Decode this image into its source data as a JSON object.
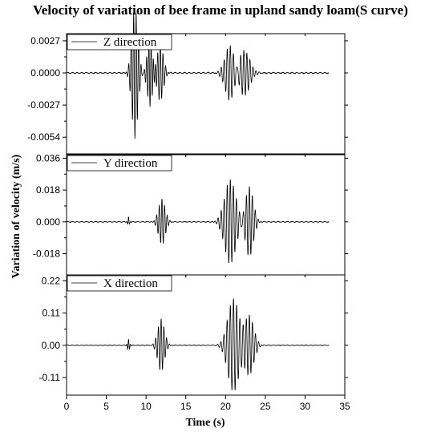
{
  "chart_data": {
    "type": "line",
    "title": "Velocity of variation of bee frame in upland sandy loam(S curve)",
    "xlabel": "Time (s)",
    "ylabel": "Variation of velocity (m/s)",
    "xlim": [
      0,
      35
    ],
    "xticks": [
      "0",
      "5",
      "10",
      "15",
      "20",
      "25",
      "30",
      "35"
    ],
    "grid": false,
    "panels": [
      {
        "name": "Z direction",
        "ylim": [
          -0.0068,
          0.0033
        ],
        "yticks": [
          0.0027,
          0.0,
          -0.0027,
          -0.0054
        ],
        "ytick_labels": [
          "0.0027",
          "0.0000",
          "-0.0027",
          "-0.0054"
        ],
        "events": [
          {
            "t": 8.6,
            "amp": -0.0055,
            "w": 0.55,
            "f": 3.2
          },
          {
            "t": 10.5,
            "amp": -0.0028,
            "w": 0.5,
            "f": 3.5
          },
          {
            "t": 11.8,
            "amp": 0.0024,
            "w": 0.55,
            "f": 3.0
          },
          {
            "t": 20.6,
            "amp": 0.0024,
            "w": 0.9,
            "f": 2.6
          },
          {
            "t": 22.3,
            "amp": 0.002,
            "w": 1.0,
            "f": 2.6
          }
        ],
        "noise": 4e-05
      },
      {
        "name": "Y direction",
        "ylim": [
          -0.03,
          0.038
        ],
        "yticks": [
          0.036,
          0.018,
          0.0,
          -0.018
        ],
        "ytick_labels": [
          "0.036",
          "0.018",
          "0.000",
          "-0.018"
        ],
        "events": [
          {
            "t": 7.8,
            "amp": 0.0025,
            "w": 0.15,
            "f": 4.0
          },
          {
            "t": 12.0,
            "amp": 0.013,
            "w": 0.6,
            "f": 3.0
          },
          {
            "t": 20.6,
            "amp": 0.024,
            "w": 1.0,
            "f": 2.6
          },
          {
            "t": 23.0,
            "amp": 0.02,
            "w": 0.7,
            "f": 2.7
          }
        ],
        "noise": 0.0002
      },
      {
        "name": "X direction",
        "ylim": [
          -0.17,
          0.24
        ],
        "yticks": [
          0.22,
          0.11,
          0.0,
          -0.11
        ],
        "ytick_labels": [
          "0.22",
          "0.11",
          "0.00",
          "-0.11"
        ],
        "events": [
          {
            "t": 7.8,
            "amp": 0.02,
            "w": 0.2,
            "f": 4.0
          },
          {
            "t": 11.9,
            "amp": 0.09,
            "w": 0.6,
            "f": 2.9
          },
          {
            "t": 21.0,
            "amp": 0.16,
            "w": 1.0,
            "f": 2.5
          },
          {
            "t": 23.0,
            "amp": 0.1,
            "w": 0.8,
            "f": 2.6
          }
        ],
        "noise": 0.001
      }
    ]
  }
}
